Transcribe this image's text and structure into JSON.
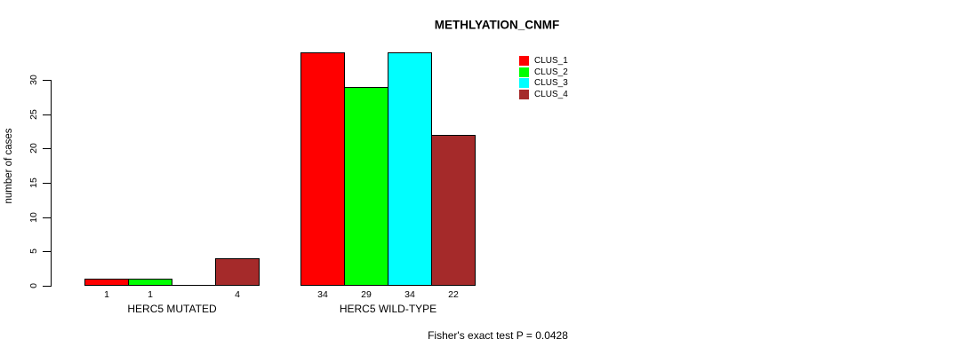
{
  "chart_data": {
    "type": "bar",
    "title": "METHLYATION_CNMF",
    "ylabel": "number of cases",
    "yticks": [
      0,
      5,
      10,
      15,
      20,
      25,
      30
    ],
    "ylim": [
      0,
      34
    ],
    "grid": false,
    "legend_position": "right",
    "categories": [
      "HERC5 MUTATED",
      "HERC5 WILD-TYPE"
    ],
    "series": [
      {
        "name": "CLUS_1",
        "color": "#ff0000",
        "values": [
          1,
          34
        ]
      },
      {
        "name": "CLUS_2",
        "color": "#00ff00",
        "values": [
          1,
          29
        ]
      },
      {
        "name": "CLUS_3",
        "color": "#00ffff",
        "values": [
          0,
          34
        ]
      },
      {
        "name": "CLUS_4",
        "color": "#a52a2a",
        "values": [
          4,
          22
        ]
      }
    ],
    "bar_value_labels": [
      [
        "1",
        "1",
        "",
        "4"
      ],
      [
        "34",
        "29",
        "34",
        "22"
      ]
    ],
    "annotation": "Fisher's exact test P = 0.0428"
  }
}
